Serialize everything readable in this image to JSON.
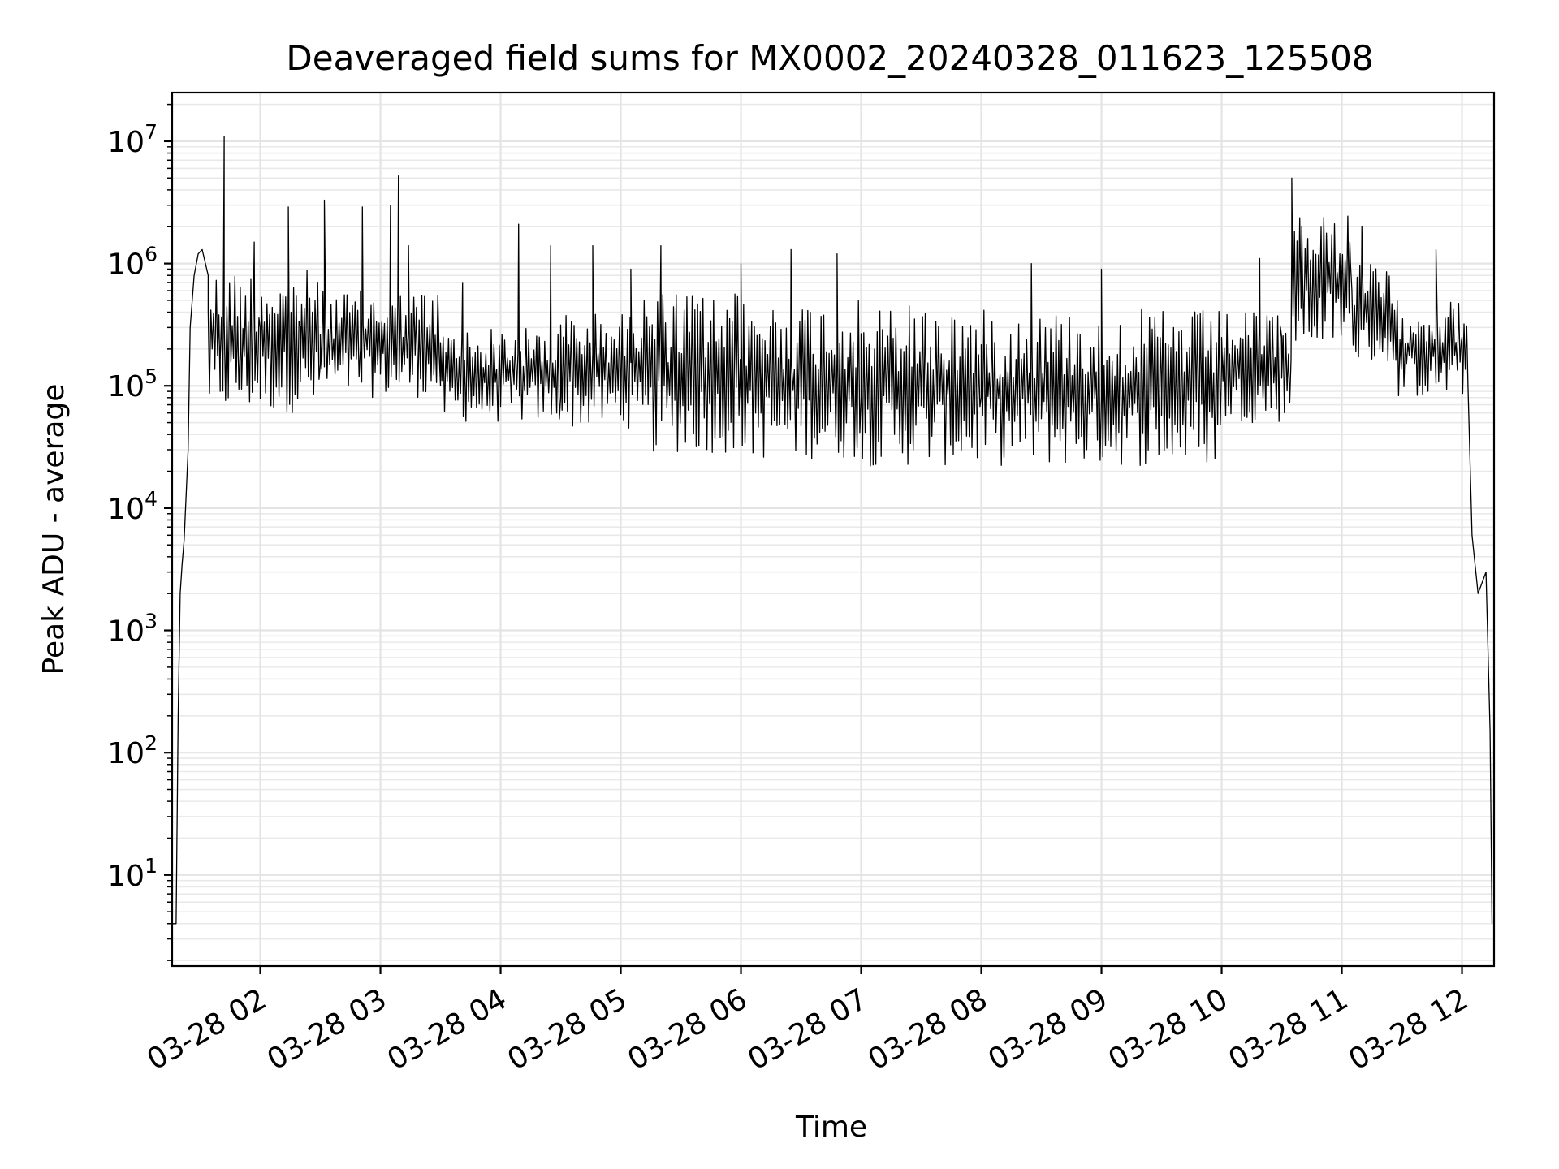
{
  "chart_data": {
    "type": "line",
    "title": "Deaveraged field sums for MX0002_20240328_011623_125508",
    "xlabel": "Time",
    "ylabel": "Peak ADU - average",
    "yscale": "log",
    "ylim": [
      1.8,
      25000000
    ],
    "xlim": [
      "2024-03-28 01:16",
      "2024-03-28 12:16"
    ],
    "grid": true,
    "x_ticks": [
      {
        "t": "2024-03-28 02:00",
        "label": "03-28 02"
      },
      {
        "t": "2024-03-28 03:00",
        "label": "03-28 03"
      },
      {
        "t": "2024-03-28 04:00",
        "label": "03-28 04"
      },
      {
        "t": "2024-03-28 05:00",
        "label": "03-28 05"
      },
      {
        "t": "2024-03-28 06:00",
        "label": "03-28 06"
      },
      {
        "t": "2024-03-28 07:00",
        "label": "03-28 07"
      },
      {
        "t": "2024-03-28 08:00",
        "label": "03-28 08"
      },
      {
        "t": "2024-03-28 09:00",
        "label": "03-28 09"
      },
      {
        "t": "2024-03-28 10:00",
        "label": "03-28 10"
      },
      {
        "t": "2024-03-28 11:00",
        "label": "03-28 11"
      },
      {
        "t": "2024-03-28 12:00",
        "label": "03-28 12"
      }
    ],
    "y_ticks": [
      {
        "value": 10,
        "base": "10",
        "exp": "1"
      },
      {
        "value": 100,
        "base": "10",
        "exp": "2"
      },
      {
        "value": 1000,
        "base": "10",
        "exp": "3"
      },
      {
        "value": 10000,
        "base": "10",
        "exp": "4"
      },
      {
        "value": 100000,
        "base": "10",
        "exp": "5"
      },
      {
        "value": 1000000,
        "base": "10",
        "exp": "6"
      },
      {
        "value": 10000000,
        "base": "10",
        "exp": "7"
      }
    ],
    "series": [
      {
        "color": "#000000",
        "points": [
          [
            "2024-03-28 01:16",
            4
          ],
          [
            "2024-03-28 01:18",
            4
          ],
          [
            "2024-03-28 01:19",
            200
          ],
          [
            "2024-03-28 01:20",
            2000
          ],
          [
            "2024-03-28 01:21",
            3500
          ],
          [
            "2024-03-28 01:22",
            5500
          ],
          [
            "2024-03-28 01:24",
            30000
          ],
          [
            "2024-03-28 01:25",
            300000
          ],
          [
            "2024-03-28 01:27",
            800000
          ],
          [
            "2024-03-28 01:29",
            1200000
          ],
          [
            "2024-03-28 01:31",
            1300000
          ],
          [
            "2024-03-28 01:34",
            800000
          ],
          [
            "2024-03-28 01:36",
            200000
          ],
          [
            "2024-03-28 01:40",
            90000
          ],
          [
            "2024-03-28 01:42",
            11000000
          ],
          [
            "2024-03-28 01:44",
            100000
          ],
          [
            "2024-03-28 01:50",
            200000
          ],
          [
            "2024-03-28 02:00",
            300000
          ],
          [
            "2024-03-28 02:10",
            500000
          ],
          [
            "2024-03-28 02:20",
            300000
          ],
          [
            "2024-03-28 02:30",
            150000
          ],
          [
            "2024-03-28 02:40",
            150000
          ],
          [
            "2024-03-28 02:50",
            200000
          ],
          [
            "2024-03-28 03:00",
            150000
          ],
          [
            "2024-03-28 03:15",
            150000
          ],
          [
            "2024-03-28 03:30",
            100000
          ],
          [
            "2024-03-28 04:00",
            80000
          ],
          [
            "2024-03-28 04:30",
            80000
          ],
          [
            "2024-03-28 05:00",
            90000
          ],
          [
            "2024-03-28 05:30",
            80000
          ],
          [
            "2024-03-28 06:00",
            80000
          ],
          [
            "2024-03-28 06:30",
            80000
          ],
          [
            "2024-03-28 07:00",
            80000
          ],
          [
            "2024-03-28 07:30",
            80000
          ],
          [
            "2024-03-28 08:00",
            80000
          ],
          [
            "2024-03-28 08:30",
            80000
          ],
          [
            "2024-03-28 09:00",
            80000
          ],
          [
            "2024-03-28 09:30",
            90000
          ],
          [
            "2024-03-28 10:00",
            150000
          ],
          [
            "2024-03-28 10:30",
            250000
          ],
          [
            "2024-03-28 10:40",
            2000000
          ],
          [
            "2024-03-28 11:00",
            800000
          ],
          [
            "2024-03-28 11:15",
            300000
          ],
          [
            "2024-03-28 11:30",
            200000
          ],
          [
            "2024-03-28 12:00",
            250000
          ],
          [
            "2024-03-28 12:03",
            100000
          ],
          [
            "2024-03-28 12:05",
            6000
          ],
          [
            "2024-03-28 12:08",
            2000
          ],
          [
            "2024-03-28 12:12",
            3000
          ],
          [
            "2024-03-28 12:14",
            150
          ],
          [
            "2024-03-28 12:15",
            4
          ]
        ],
        "band": [
          {
            "from": "2024-03-28 01:34",
            "to": "2024-03-28 02:30",
            "low": 60000,
            "high": 900000
          },
          {
            "from": "2024-03-28 02:30",
            "to": "2024-03-28 03:30",
            "low": 80000,
            "high": 600000
          },
          {
            "from": "2024-03-28 03:30",
            "to": "2024-03-28 04:30",
            "low": 50000,
            "high": 300000
          },
          {
            "from": "2024-03-28 04:30",
            "to": "2024-03-28 05:05",
            "low": 45000,
            "high": 400000
          },
          {
            "from": "2024-03-28 05:05",
            "to": "2024-03-28 06:00",
            "low": 28000,
            "high": 600000
          },
          {
            "from": "2024-03-28 06:00",
            "to": "2024-03-28 07:00",
            "low": 25000,
            "high": 500000
          },
          {
            "from": "2024-03-28 07:00",
            "to": "2024-03-28 08:00",
            "low": 22000,
            "high": 450000
          },
          {
            "from": "2024-03-28 08:00",
            "to": "2024-03-28 09:00",
            "low": 22000,
            "high": 420000
          },
          {
            "from": "2024-03-28 09:00",
            "to": "2024-03-28 10:00",
            "low": 22000,
            "high": 420000
          },
          {
            "from": "2024-03-28 10:00",
            "to": "2024-03-28 10:35",
            "low": 50000,
            "high": 400000
          },
          {
            "from": "2024-03-28 10:35",
            "to": "2024-03-28 11:05",
            "low": 200000,
            "high": 2500000
          },
          {
            "from": "2024-03-28 11:05",
            "to": "2024-03-28 11:25",
            "low": 150000,
            "high": 1000000
          },
          {
            "from": "2024-03-28 11:25",
            "to": "2024-03-28 12:03",
            "low": 80000,
            "high": 500000
          }
        ],
        "spikes": [
          [
            "2024-03-28 01:57",
            1500000
          ],
          [
            "2024-03-28 02:14",
            2900000
          ],
          [
            "2024-03-28 02:32",
            3300000
          ],
          [
            "2024-03-28 02:51",
            2900000
          ],
          [
            "2024-03-28 03:05",
            3000000
          ],
          [
            "2024-03-28 03:09",
            5200000
          ],
          [
            "2024-03-28 03:14",
            1400000
          ],
          [
            "2024-03-28 03:41",
            700000
          ],
          [
            "2024-03-28 04:09",
            2100000
          ],
          [
            "2024-03-28 04:25",
            1400000
          ],
          [
            "2024-03-28 04:46",
            1400000
          ],
          [
            "2024-03-28 05:05",
            900000
          ],
          [
            "2024-03-28 05:20",
            1400000
          ],
          [
            "2024-03-28 06:00",
            1000000
          ],
          [
            "2024-03-28 06:25",
            1300000
          ],
          [
            "2024-03-28 06:48",
            1200000
          ],
          [
            "2024-03-28 07:24",
            450000
          ],
          [
            "2024-03-28 08:25",
            1000000
          ],
          [
            "2024-03-28 09:00",
            900000
          ],
          [
            "2024-03-28 10:19",
            1100000
          ],
          [
            "2024-03-28 10:35",
            5000000
          ],
          [
            "2024-03-28 11:04",
            1500000
          ],
          [
            "2024-03-28 11:10",
            2000000
          ],
          [
            "2024-03-28 11:47",
            1300000
          ]
        ]
      }
    ]
  }
}
